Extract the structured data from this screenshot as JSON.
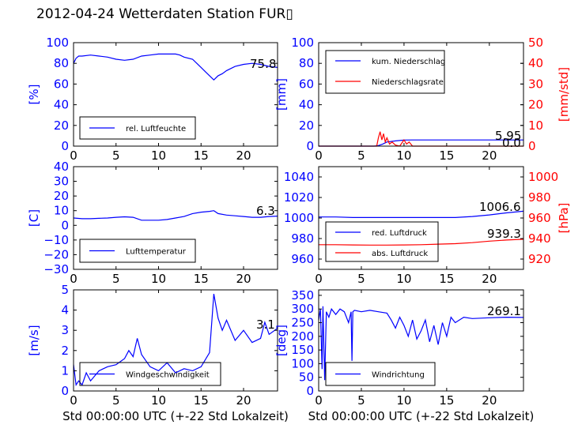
{
  "title": "2012-04-24 Wetterdaten Station FUR▯",
  "colors": {
    "blue": "#0000ff",
    "red": "#ff0000",
    "light_blue": "#8080ff",
    "axis": "#000000"
  },
  "chart_data": [
    {
      "type": "line",
      "panel": "top-left",
      "ylabel": "[%]",
      "xlim": [
        0,
        24
      ],
      "ylim": [
        0,
        100
      ],
      "x_ticks": [
        "0",
        "5",
        "10",
        "15",
        "20"
      ],
      "y_ticks": [
        "0",
        "20",
        "40",
        "60",
        "80",
        "100"
      ],
      "legend": "bottom-left",
      "annotation": "75.8",
      "series": [
        {
          "name": "rel. Luftfeuchte",
          "color": "#0000ff",
          "x": [
            0,
            0.3,
            0.6,
            1,
            2,
            3,
            4,
            5,
            6,
            7,
            8,
            9,
            10,
            11,
            12,
            12.5,
            13,
            14,
            14.5,
            15,
            15.5,
            16,
            16.5,
            17,
            17.5,
            18,
            19,
            20,
            21,
            22,
            23,
            24
          ],
          "y": [
            80,
            85,
            87,
            87,
            88,
            87,
            86,
            84,
            83,
            84,
            87,
            88,
            89,
            89,
            89,
            88,
            86,
            84,
            80,
            76,
            72,
            68,
            64,
            68,
            70,
            73,
            77,
            79,
            80,
            79,
            77,
            76
          ]
        }
      ]
    },
    {
      "type": "line",
      "panel": "top-right",
      "ylabel": "[mm]",
      "y2label": "[mm/std]",
      "xlim": [
        0,
        24
      ],
      "ylim": [
        0,
        100
      ],
      "y2lim": [
        0,
        50
      ],
      "x_ticks": [
        "0",
        "5",
        "10",
        "15",
        "20"
      ],
      "y_ticks": [
        "0",
        "20",
        "40",
        "60",
        "80",
        "100"
      ],
      "y2_ticks": [
        "0",
        "10",
        "20",
        "30",
        "40",
        "50"
      ],
      "legend": "top-left",
      "annotations": [
        "5.95",
        "0.0"
      ],
      "series": [
        {
          "name": "kum. Niederschlag",
          "color": "#0000ff",
          "axis": "left",
          "x": [
            0,
            6.5,
            7,
            7.5,
            8,
            9,
            10,
            11,
            15,
            20,
            24
          ],
          "y": [
            0,
            0,
            0.5,
            2,
            4,
            5,
            5.9,
            5.95,
            5.95,
            5.95,
            5.95
          ]
        },
        {
          "name": "Niederschlagsrate",
          "color": "#ff0000",
          "axis": "right",
          "x": [
            0,
            6.8,
            7,
            7.2,
            7.4,
            7.6,
            7.8,
            8.0,
            8.3,
            8.6,
            9,
            9.5,
            10,
            10.3,
            10.6,
            11,
            12,
            24
          ],
          "y": [
            0,
            0,
            4,
            7,
            3,
            6,
            2,
            4,
            1,
            2,
            0.5,
            0,
            3,
            1,
            2,
            0,
            0,
            0
          ]
        }
      ]
    },
    {
      "type": "line",
      "panel": "middle-left",
      "ylabel": "[C]",
      "xlim": [
        0,
        24
      ],
      "ylim": [
        -30,
        40
      ],
      "x_ticks": [
        "0",
        "5",
        "10",
        "15",
        "20"
      ],
      "y_ticks": [
        "−30",
        "−20",
        "−10",
        "0",
        "10",
        "20",
        "30",
        "40"
      ],
      "legend": "bottom-left",
      "annotation": "6.3",
      "series": [
        {
          "name": "Lufttemperatur",
          "color": "#0000ff",
          "x": [
            0,
            1,
            2,
            3,
            4,
            5,
            6,
            7,
            8,
            9,
            10,
            11,
            12,
            13,
            14,
            15,
            16,
            16.5,
            17,
            18,
            19,
            20,
            21,
            22,
            23,
            24
          ],
          "y": [
            5,
            4.5,
            4.5,
            4.8,
            5,
            5.5,
            5.8,
            5.5,
            3.5,
            3.5,
            3.5,
            4,
            5,
            6,
            8,
            9,
            9.5,
            10,
            8,
            7,
            6.5,
            6,
            5.5,
            5.5,
            6,
            6.3
          ]
        }
      ]
    },
    {
      "type": "line",
      "panel": "middle-right",
      "ylabel": "",
      "y2label": "[hPa]",
      "xlim": [
        0,
        24
      ],
      "ylim": [
        950,
        1050
      ],
      "y2lim": [
        910,
        1010
      ],
      "x_ticks": [
        "0",
        "5",
        "10",
        "15",
        "20"
      ],
      "y_ticks": [
        "960",
        "980",
        "1000",
        "1020",
        "1040"
      ],
      "y2_ticks": [
        "920",
        "940",
        "960",
        "980",
        "1000"
      ],
      "legend": "bottom-left",
      "annotations": [
        "1006.6",
        "939.3"
      ],
      "series": [
        {
          "name": "red. Luftdruck",
          "color": "#0000ff",
          "axis": "left",
          "x": [
            0,
            2,
            4,
            6,
            8,
            10,
            12,
            14,
            16,
            18,
            20,
            22,
            24
          ],
          "y": [
            1001,
            1001,
            1000.5,
            1000.5,
            1000.5,
            1000.5,
            1000.5,
            1000.5,
            1000.5,
            1001.5,
            1003,
            1005,
            1006.6
          ]
        },
        {
          "name": "abs. Luftdruck",
          "color": "#ff0000",
          "axis": "right",
          "x": [
            0,
            2,
            4,
            6,
            8,
            10,
            12,
            14,
            16,
            18,
            20,
            22,
            24
          ],
          "y": [
            934,
            934,
            933.8,
            933.6,
            933.6,
            933.8,
            934,
            934.5,
            935,
            936,
            937.5,
            938.5,
            939.3
          ]
        }
      ]
    },
    {
      "type": "line",
      "panel": "bottom-left",
      "ylabel": "[m/s]",
      "xlabel": "Std 00:00:00 UTC (+-22 Std Lokalzeit)",
      "xlim": [
        0,
        24
      ],
      "ylim": [
        0,
        5
      ],
      "x_ticks": [
        "0",
        "5",
        "10",
        "15",
        "20"
      ],
      "y_ticks": [
        "0",
        "1",
        "2",
        "3",
        "4",
        "5"
      ],
      "legend": "bottom-left",
      "annotation": "3.1",
      "series": [
        {
          "name": "Windgeschwindigkeit",
          "color": "#0000ff",
          "x": [
            0,
            0.3,
            0.6,
            1,
            1.5,
            2,
            3,
            4,
            5,
            6,
            6.5,
            7,
            7.5,
            8,
            9,
            10,
            11,
            12,
            13,
            14,
            15,
            16,
            16.5,
            17,
            17.5,
            18,
            19,
            20,
            21,
            22,
            22.5,
            23,
            24
          ],
          "y": [
            1.3,
            0.3,
            0.5,
            0.3,
            0.9,
            0.5,
            1.0,
            1.2,
            1.3,
            1.6,
            2.0,
            1.7,
            2.6,
            1.8,
            1.2,
            1.0,
            1.4,
            0.9,
            1.1,
            1.0,
            1.2,
            1.9,
            4.8,
            3.6,
            3.0,
            3.5,
            2.5,
            3.0,
            2.4,
            2.6,
            3.4,
            2.8,
            3.1
          ]
        }
      ]
    },
    {
      "type": "line",
      "panel": "bottom-right",
      "ylabel": "[deg]",
      "xlabel": "Std 00:00:00 UTC (+-22 Std Lokalzeit)",
      "xlim": [
        0,
        24
      ],
      "ylim": [
        0,
        370
      ],
      "x_ticks": [
        "0",
        "5",
        "10",
        "15",
        "20"
      ],
      "y_ticks": [
        "0",
        "50",
        "100",
        "150",
        "200",
        "250",
        "300",
        "350"
      ],
      "legend": "bottom-left",
      "annotation": "269.1",
      "series": [
        {
          "name": "Windrichtung",
          "color": "#0000ff",
          "x": [
            0,
            0.2,
            0.4,
            0.5,
            0.7,
            0.9,
            1.2,
            1.5,
            2,
            2.5,
            3,
            3.5,
            3.8,
            3.9,
            4.0,
            4.2,
            5,
            6,
            7,
            8,
            8.5,
            9,
            9.5,
            10,
            10.5,
            11,
            11.5,
            12,
            12.5,
            13,
            13.5,
            14,
            14.5,
            15,
            15.5,
            16,
            17,
            18,
            20,
            22,
            24
          ],
          "y": [
            260,
            300,
            80,
            310,
            40,
            290,
            270,
            300,
            280,
            300,
            290,
            250,
            290,
            110,
            290,
            295,
            290,
            295,
            290,
            285,
            260,
            230,
            270,
            240,
            200,
            260,
            190,
            220,
            260,
            180,
            240,
            170,
            250,
            200,
            270,
            250,
            270,
            265,
            268,
            270,
            269
          ]
        }
      ]
    }
  ]
}
